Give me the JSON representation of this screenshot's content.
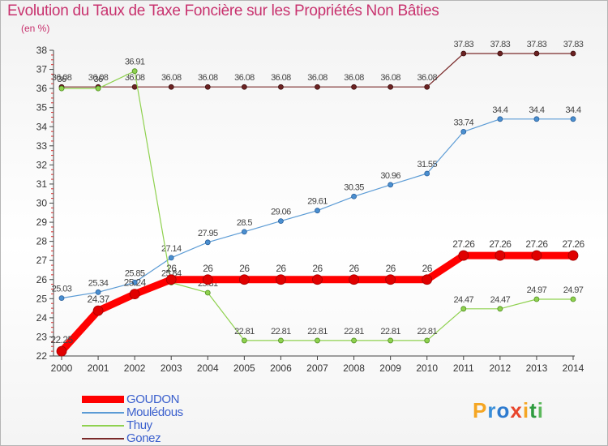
{
  "chart_data": {
    "type": "line",
    "title": "Evolution du Taux de Taxe Foncière sur les Propriétés Non Bâties",
    "unit_label": "(en %)",
    "xlabel": "",
    "ylabel": "(en %)",
    "categories": [
      "2000",
      "2001",
      "2002",
      "2003",
      "2004",
      "2005",
      "2006",
      "2007",
      "2008",
      "2009",
      "2010",
      "2011",
      "2012",
      "2013",
      "2014"
    ],
    "ylim": [
      22,
      38
    ],
    "yticks": [
      "22",
      "23",
      "24",
      "25",
      "26",
      "27",
      "28",
      "29",
      "30",
      "31",
      "32",
      "33",
      "34",
      "35",
      "36",
      "37",
      "38"
    ],
    "grid": false,
    "legend_position": "bottom-left",
    "series": [
      {
        "name": "Gonez",
        "color": "#7a2a2a",
        "values": [
          36.08,
          36.08,
          36.08,
          36.08,
          36.08,
          36.08,
          36.08,
          36.08,
          36.08,
          36.08,
          36.08,
          37.83,
          37.83,
          37.83,
          37.83
        ],
        "labels": [
          "36.08",
          "36.08",
          "36.08",
          "36.08",
          "36.08",
          "36.08",
          "36.08",
          "36.08",
          "36.08",
          "36.08",
          "36.08",
          "37.83",
          "37.83",
          "37.83",
          "37.83"
        ]
      },
      {
        "name": "Mouledous",
        "display_name": "Moulédous",
        "color": "#5b9bd5",
        "values": [
          25.03,
          25.34,
          25.85,
          27.14,
          27.95,
          28.5,
          29.06,
          29.61,
          30.35,
          30.96,
          31.55,
          33.74,
          34.4,
          34.4,
          34.4
        ],
        "labels": [
          "25.03",
          "25.34",
          "25.85",
          "27.14",
          "27.95",
          "28.5",
          "29.06",
          "29.61",
          "30.35",
          "30.96",
          "31.55",
          "33.74",
          "34.4",
          "34.4",
          "34.4"
        ]
      },
      {
        "name": "Thuy",
        "color": "#8fd14f",
        "values": [
          36,
          36,
          36.91,
          25.84,
          25.31,
          22.81,
          22.81,
          22.81,
          22.81,
          22.81,
          22.81,
          24.47,
          24.47,
          24.97,
          24.97
        ],
        "labels": [
          "36",
          "36",
          "36.91",
          "25.84",
          "25.31",
          "22.81",
          "22.81",
          "22.81",
          "22.81",
          "22.81",
          "22.81",
          "24.47",
          "24.47",
          "24.97",
          "24.97"
        ]
      },
      {
        "name": "GOUDON",
        "color": "#ff0000",
        "values": [
          22.25,
          24.37,
          25.24,
          26,
          26,
          26,
          26,
          26,
          26,
          26,
          26,
          27.26,
          27.26,
          27.26,
          27.26
        ],
        "labels": [
          "22.25",
          "24.37",
          "25.24",
          "26",
          "26",
          "26",
          "26",
          "26",
          "26",
          "26",
          "26",
          "27.26",
          "27.26",
          "27.26",
          "27.26"
        ]
      }
    ]
  },
  "legend": {
    "items": [
      {
        "label": "GOUDON",
        "color": "#ff0000"
      },
      {
        "label": "Moulédous",
        "color": "#5b9bd5"
      },
      {
        "label": "Thuy",
        "color": "#8fd14f"
      },
      {
        "label": "Gonez",
        "color": "#7a2a2a"
      }
    ]
  },
  "logo": {
    "letters": [
      {
        "ch": "P",
        "color": "#f5a623"
      },
      {
        "ch": "r",
        "color": "#3a8fd9"
      },
      {
        "ch": "o",
        "color": "#2e7bcf"
      },
      {
        "ch": "x",
        "color": "#e8452c"
      },
      {
        "ch": "i",
        "color": "#f5a623"
      },
      {
        "ch": "t",
        "color": "#2e9b3f"
      },
      {
        "ch": "i",
        "color": "#5cb85c"
      }
    ]
  }
}
